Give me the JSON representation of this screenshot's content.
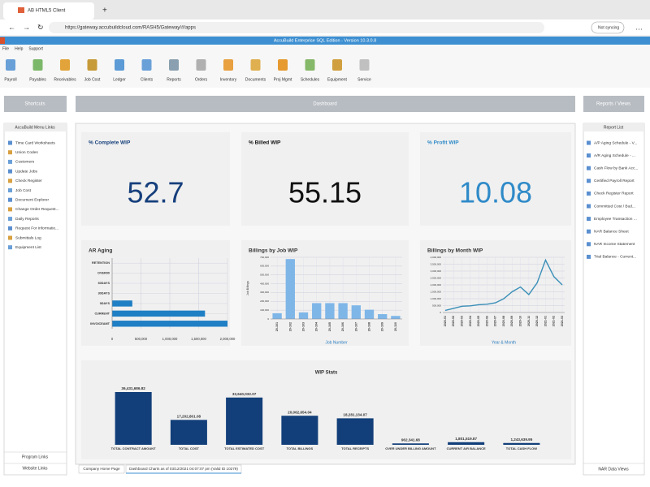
{
  "browser": {
    "tab_title": "AB HTML5 Client",
    "url": "https://gateway.accubuildcloud.com/RASH5/Gateway/#/apps",
    "sync_status": "Not syncing"
  },
  "app": {
    "title": "AccuBuild Enterprise SQL Edition - Version 10.3.0.8",
    "menu": [
      "File",
      "Help",
      "Support"
    ],
    "toolbar": [
      "Payroll",
      "Payables",
      "Receivables",
      "Job Cost",
      "Ledger",
      "Clients",
      "Reports",
      "Orders",
      "Inventory",
      "Documents",
      "Proj Mgmt",
      "Schedules",
      "Equipment",
      "Service"
    ]
  },
  "headers": {
    "shortcuts": "Shortcuts",
    "dashboard": "Dashboard",
    "reports_views": "Reports / Views"
  },
  "left_panel": {
    "title": "AccuBuild Menu Links",
    "items": [
      "Time Card Worksheets",
      "Union Codes",
      "Customers",
      "Update Jobs",
      "Check Register",
      "Job Cost",
      "Document Explorer",
      "Change Order Request...",
      "Daily Reports",
      "Request For Informatio...",
      "Submittals Log",
      "Equipment List"
    ],
    "footer": [
      "Program Links",
      "Website Links"
    ]
  },
  "right_panel": {
    "title": "Report List",
    "items": [
      "A/P Aging Schedule - V...",
      "A/R Aging Schedule - ...",
      "Cash Flow by Bank Acc...",
      "Certified Payroll Report",
      "Check Register Report",
      "Committed Cost / Bud...",
      "Employee Transaction ...",
      "NAR Balance Sheet",
      "NAR Income Statement",
      "Trial Balance - Current..."
    ],
    "footer": "NAR Data Views"
  },
  "bottom_tabs": [
    "Company Home Page",
    "Dashboard Charts as of 03/12/2021 04:07:07 pm (Valid ID 10279)"
  ],
  "kpis": [
    {
      "title": "% Complete WIP",
      "value": 52.7,
      "color": "#163f7c"
    },
    {
      "title": "% Billed WIP",
      "value": 55.15,
      "color": "#111111"
    },
    {
      "title": "% Profit WIP",
      "value": 10.08,
      "color": "#2f8ac8"
    }
  ],
  "chart_data": [
    {
      "type": "bar",
      "orientation": "horizontal",
      "title": "AR Aging",
      "categories": [
        "RETENTION",
        "OVER90",
        "60DAYS",
        "30DAYS",
        "0DAYS",
        "CURRENT",
        "INVOICEAMT"
      ],
      "values": [
        0,
        0,
        0,
        0,
        350000,
        1610000,
        2000000
      ],
      "color": "#1f7fc4",
      "grid": true,
      "xlim": [
        0,
        2000000
      ],
      "xticks": [
        0,
        {
          "value": 500000,
          "label": "500,000"
        },
        {
          "value": 1000000,
          "label": "1,000,000"
        },
        {
          "value": 1500000,
          "label": "1,500,000"
        },
        {
          "value": 2000000,
          "label": "2,000,000"
        }
      ]
    },
    {
      "type": "bar",
      "title": "Billings by Job WIP",
      "x_label": "Job Number",
      "y_label": "Job Billings",
      "categories": [
        "20-101",
        "20-102",
        "20-103",
        "20-104",
        "20-105",
        "20-106",
        "20-107",
        "20-108",
        "20-109",
        "20-110"
      ],
      "values": [
        65000,
        680000,
        75000,
        180000,
        180000,
        180000,
        155000,
        105000,
        55000,
        35000
      ],
      "color": "#7fb6e8",
      "grid": true,
      "ylim": [
        0,
        700000
      ],
      "yticks": [
        0,
        {
          "value": 100000,
          "label": "100,000"
        },
        {
          "value": 200000,
          "label": "200,000"
        },
        {
          "value": 300000,
          "label": "300,000"
        },
        {
          "value": 400000,
          "label": "400,000"
        },
        {
          "value": 500000,
          "label": "500,000"
        },
        {
          "value": 600000,
          "label": "600,000"
        },
        {
          "value": 700000,
          "label": "700,000"
        }
      ]
    },
    {
      "type": "line",
      "title": "Billings by Month WIP",
      "x_label": "Year & Month",
      "categories": [
        "2020-01",
        "2020-02",
        "2020-03",
        "2020-04",
        "2020-05",
        "2020-06",
        "2020-07",
        "2020-08",
        "2020-09",
        "2020-10",
        "2020-11",
        "2020-12",
        "2021-01",
        "2021-02",
        "2021-03"
      ],
      "values": [
        150000,
        300000,
        450000,
        480000,
        560000,
        600000,
        700000,
        1000000,
        1500000,
        1850000,
        1300000,
        2150000,
        3800000,
        2600000,
        2000000
      ],
      "color": "#3a8fb7",
      "grid": true,
      "ylim": [
        0,
        4000000
      ],
      "yticks": [
        0,
        {
          "value": 500000,
          "label": "500,000"
        },
        {
          "value": 1000000,
          "label": "1,000,000"
        },
        {
          "value": 1500000,
          "label": "1,500,000"
        },
        {
          "value": 2000000,
          "label": "2,000,000"
        },
        {
          "value": 2500000,
          "label": "2,500,000"
        },
        {
          "value": 3000000,
          "label": "3,000,000"
        },
        {
          "value": 3500000,
          "label": "3,500,000"
        },
        {
          "value": 4000000,
          "label": "4,000,000"
        }
      ]
    },
    {
      "type": "bar",
      "title": "WIP Stats",
      "categories": [
        "TOTAL CONTRACT AMOUNT",
        "TOTAL COST",
        "TOTAL ESTIMATED COST",
        "TOTAL BILLINGS",
        "TOTAL RECEIPTS",
        "OVER UNDER BILLING AMOUNT",
        "CURRENT A/R BALANCE",
        "TOTAL CASH FLOW"
      ],
      "values": [
        36431686.82,
        17202801.08,
        32640032.07,
        20062654.04,
        18281134.07,
        962341.68,
        1801519.87,
        1243639.95
      ],
      "value_labels": [
        "36,431,686.82",
        "17,202,801.08",
        "32,640,032.07",
        "20,062,654.04",
        "18,281,134.07",
        "962,341.68",
        "1,801,519.87",
        "1,243,639.95"
      ],
      "color": "#123f7a",
      "grid": false
    }
  ]
}
